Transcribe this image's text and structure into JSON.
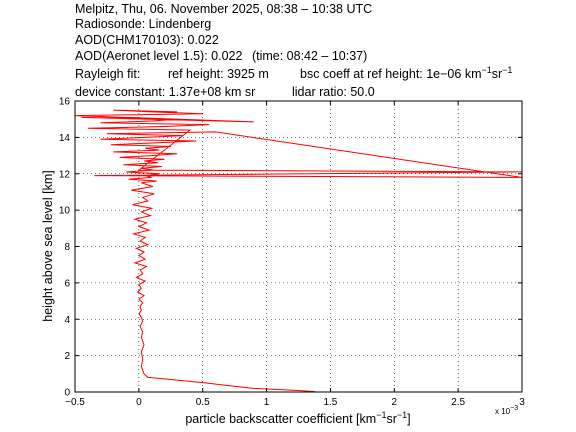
{
  "header": {
    "line1": "Melpitz, Thu, 06. November 2025, 08:38 – 10:38 UTC",
    "line2": "Radiosonde: Lindenberg",
    "line3": "AOD(CHM170103): 0.022",
    "line4a": "AOD(Aeronet level 1.5): 0.022",
    "line4b": "(time: 08:42 – 10:37)",
    "rayleigh_label": "Rayleigh fit:",
    "ref_height": "ref height: 3925 m",
    "bsc_coeff_prefix": "bsc coeff at ref height: 1e−06 km",
    "sup_minus1": "−1",
    "sr": "sr",
    "device_constant": "device constant: 1.37e+08 km sr",
    "lidar_ratio": "lidar ratio: 50.0"
  },
  "chart_data": {
    "type": "line",
    "xlabel_prefix": "particle backscatter coefficient [km",
    "xlabel_mid": "sr",
    "xlabel_suffix": "]",
    "xlabel_sup": "−1",
    "ylabel": "height above sea level [km]",
    "x_multiplier": "x 10",
    "x_multiplier_exp": "−3",
    "xlim": [
      -0.5,
      3
    ],
    "ylim": [
      0,
      16
    ],
    "xticks": [
      -0.5,
      0,
      0.5,
      1,
      1.5,
      2,
      2.5,
      3
    ],
    "xtick_labels": [
      "−0.5",
      "0",
      "0.5",
      "1",
      "1.5",
      "2",
      "2.5",
      "3"
    ],
    "yticks": [
      0,
      2,
      4,
      6,
      8,
      10,
      12,
      14,
      16
    ],
    "ytick_labels": [
      "0",
      "2",
      "4",
      "6",
      "8",
      "10",
      "12",
      "14",
      "16"
    ],
    "grid": true,
    "line_color": "#ff0000",
    "series": [
      {
        "x": [
          1.38,
          1.25,
          0.9,
          0.7,
          0.52,
          0.35,
          0.2,
          0.07,
          0.04,
          0.02,
          0.03,
          0.02,
          0.04,
          0.02,
          0.03,
          0.01,
          0.03,
          0.02,
          0.0,
          0.02,
          0.01,
          0.03,
          0.0,
          0.04,
          -0.01,
          0.02,
          0.0,
          0.05,
          -0.02,
          0.03,
          0.01,
          0.06,
          -0.03,
          0.05,
          0.0,
          0.04,
          -0.02,
          0.07,
          0.01,
          0.05,
          -0.04,
          0.08,
          0.0,
          0.06,
          -0.03,
          0.09,
          0.02,
          0.1,
          -0.05,
          0.07,
          0.03,
          0.12,
          -0.06,
          0.11,
          0.02,
          0.14,
          -0.08,
          0.1,
          0.05,
          0.16,
          -0.1,
          0.12,
          0.02,
          0.18,
          -0.12,
          0.15,
          0.04,
          0.2,
          -0.15,
          0.1,
          0.3,
          -0.2,
          0.16,
          0.05,
          0.25,
          -0.22,
          0.15,
          0.45,
          -0.3,
          0.05,
          0.35,
          -0.25,
          0.6,
          3.0,
          -0.35,
          3.0,
          0.0,
          0.4,
          -0.4,
          0.2,
          0.55,
          -0.3,
          0.1,
          0.3,
          -0.45,
          0.9,
          -0.5,
          0.5,
          0.1,
          -0.2,
          0.3,
          0.05
        ],
        "y": [
          0.02,
          0.08,
          0.2,
          0.35,
          0.5,
          0.62,
          0.72,
          0.8,
          1.0,
          1.4,
          1.8,
          2.2,
          2.6,
          3.0,
          3.3,
          3.6,
          3.9,
          4.1,
          4.3,
          4.5,
          4.7,
          4.9,
          5.1,
          5.3,
          5.5,
          5.7,
          5.9,
          6.1,
          6.3,
          6.5,
          6.7,
          6.9,
          7.1,
          7.3,
          7.5,
          7.7,
          7.9,
          8.1,
          8.3,
          8.5,
          8.7,
          8.9,
          9.1,
          9.3,
          9.5,
          9.7,
          9.9,
          10.1,
          10.3,
          10.5,
          10.7,
          10.9,
          11.1,
          11.3,
          11.5,
          11.6,
          11.7,
          11.8,
          11.9,
          12.0,
          12.1,
          12.2,
          12.3,
          12.4,
          12.5,
          12.6,
          12.7,
          12.8,
          12.9,
          13.0,
          13.1,
          13.2,
          13.3,
          13.4,
          13.5,
          13.6,
          13.7,
          13.8,
          13.9,
          14.0,
          14.1,
          14.2,
          14.3,
          11.8,
          11.9,
          12.1,
          12.2,
          14.4,
          14.5,
          14.6,
          14.7,
          14.8,
          14.9,
          15.0,
          15.1,
          14.85,
          15.2,
          15.3,
          15.4,
          15.5,
          15.4,
          15.45
        ]
      }
    ]
  }
}
